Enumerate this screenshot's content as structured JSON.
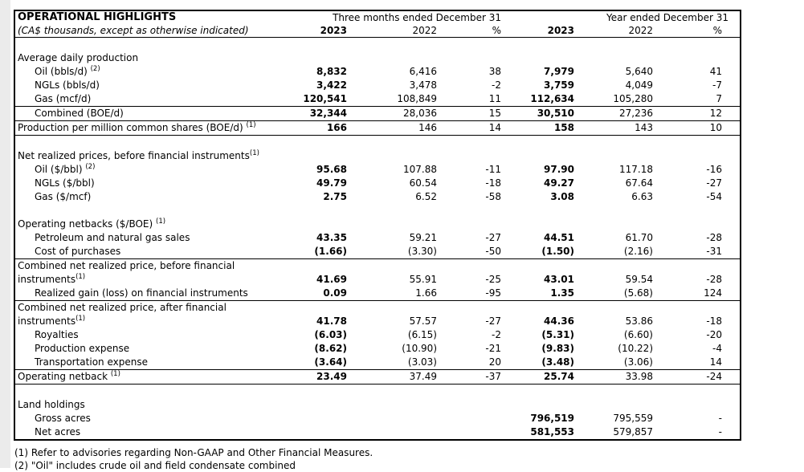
{
  "table": {
    "title": "OPERATIONAL HIGHLIGHTS",
    "subtitle": "(CA$ thousands, except as otherwise indicated)",
    "col_groups": [
      {
        "label": "Three months ended December 31"
      },
      {
        "label": "Year ended December 31"
      }
    ],
    "col_headers": [
      "2023",
      "2022",
      "%",
      "2023",
      "2022",
      "%"
    ],
    "rows": [
      {
        "type": "spacer"
      },
      {
        "type": "section",
        "label": "Average daily production"
      },
      {
        "type": "data",
        "indent": true,
        "label": "Oil (bbls/d) ",
        "sup": "(2)",
        "values": [
          "8,832",
          "6,416",
          "38",
          "7,979",
          "5,640",
          "41"
        ]
      },
      {
        "type": "data",
        "indent": true,
        "label": "NGLs (bbls/d)",
        "values": [
          "3,422",
          "3,478",
          "-2",
          "3,759",
          "4,049",
          "-7"
        ]
      },
      {
        "type": "data",
        "indent": true,
        "label": "Gas (mcf/d)",
        "rule": true,
        "values": [
          "120,541",
          "108,849",
          "11",
          "112,634",
          "105,280",
          "7"
        ]
      },
      {
        "type": "data",
        "indent": true,
        "label": "Combined (BOE/d)",
        "rule": true,
        "values": [
          "32,344",
          "28,036",
          "15",
          "30,510",
          "27,236",
          "12"
        ]
      },
      {
        "type": "data",
        "indent": false,
        "label": "Production per million common shares (BOE/d) ",
        "sup": "(1)",
        "rule": true,
        "values": [
          "166",
          "146",
          "14",
          "158",
          "143",
          "10"
        ]
      },
      {
        "type": "spacer"
      },
      {
        "type": "section",
        "label": "Net realized prices, before financial instruments",
        "sup": "(1)"
      },
      {
        "type": "data",
        "indent": true,
        "label": "Oil ($/bbl) ",
        "sup": "(2)",
        "values": [
          "95.68",
          "107.88",
          "-11",
          "97.90",
          "117.18",
          "-16"
        ]
      },
      {
        "type": "data",
        "indent": true,
        "label": "NGLs ($/bbl)",
        "values": [
          "49.79",
          "60.54",
          "-18",
          "49.27",
          "67.64",
          "-27"
        ]
      },
      {
        "type": "data",
        "indent": true,
        "label": "Gas ($/mcf)",
        "values": [
          "2.75",
          "6.52",
          "-58",
          "3.08",
          "6.63",
          "-54"
        ]
      },
      {
        "type": "spacer"
      },
      {
        "type": "section",
        "label": "Operating netbacks ($/BOE) ",
        "sup": "(1)"
      },
      {
        "type": "data",
        "indent": true,
        "label": "Petroleum and natural gas sales",
        "values": [
          "43.35",
          "59.21",
          "-27",
          "44.51",
          "61.70",
          "-28"
        ]
      },
      {
        "type": "data",
        "indent": true,
        "label": "Cost of purchases",
        "rule": true,
        "values": [
          "(1.66)",
          "(3.30)",
          "-50",
          "(1.50)",
          "(2.16)",
          "-31"
        ]
      },
      {
        "type": "data2",
        "label_line1": "Combined net realized price, before financial",
        "label_line2": "instruments",
        "sup": "(1)",
        "values": [
          "41.69",
          "55.91",
          "-25",
          "43.01",
          "59.54",
          "-28"
        ]
      },
      {
        "type": "data",
        "indent": true,
        "label": "Realized gain (loss) on financial instruments",
        "rule": true,
        "values": [
          "0.09",
          "1.66",
          "-95",
          "1.35",
          "(5.68)",
          "124"
        ]
      },
      {
        "type": "data2",
        "label_line1": "Combined net realized price, after financial",
        "label_line2": "instruments",
        "sup": "(1)",
        "values": [
          "41.78",
          "57.57",
          "-27",
          "44.36",
          "53.86",
          "-18"
        ]
      },
      {
        "type": "data",
        "indent": true,
        "label": "Royalties",
        "values": [
          "(6.03)",
          "(6.15)",
          "-2",
          "(5.31)",
          "(6.60)",
          "-20"
        ]
      },
      {
        "type": "data",
        "indent": true,
        "label": "Production expense",
        "values": [
          "(8.62)",
          "(10.90)",
          "-21",
          "(9.83)",
          "(10.22)",
          "-4"
        ]
      },
      {
        "type": "data",
        "indent": true,
        "label": "Transportation expense",
        "rule": true,
        "values": [
          "(3.64)",
          "(3.03)",
          "20",
          "(3.48)",
          "(3.06)",
          "14"
        ]
      },
      {
        "type": "data",
        "indent": false,
        "label": "Operating netback ",
        "sup": "(1)",
        "rule": true,
        "values": [
          "23.49",
          "37.49",
          "-37",
          "25.74",
          "33.98",
          "-24"
        ]
      },
      {
        "type": "spacer"
      },
      {
        "type": "section",
        "label": "Land holdings"
      },
      {
        "type": "data",
        "indent": true,
        "label": "Gross acres",
        "values": [
          "",
          "",
          "",
          "796,519",
          "795,559",
          "-"
        ]
      },
      {
        "type": "data",
        "indent": true,
        "label": "Net acres",
        "values": [
          "",
          "",
          "",
          "581,553",
          "579,857",
          "-"
        ]
      }
    ]
  },
  "footnotes": [
    "(1) Refer to advisories regarding Non-GAAP and Other Financial Measures.",
    "(2) \"Oil\" includes crude oil and field condensate combined"
  ]
}
